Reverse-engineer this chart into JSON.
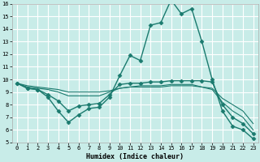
{
  "xlabel": "Humidex (Indice chaleur)",
  "background_color": "#c8ece8",
  "grid_color": "#ffffff",
  "line_color": "#1a7a6e",
  "x_range": [
    0,
    23
  ],
  "y_min": 5,
  "y_max": 16,
  "lines": [
    {
      "x": [
        0,
        1,
        2,
        3,
        4,
        5,
        6,
        7,
        8,
        9,
        10,
        11,
        12,
        13,
        14,
        15,
        16,
        17,
        18,
        19,
        20,
        21,
        22,
        23
      ],
      "y": [
        9.7,
        9.3,
        9.2,
        8.6,
        7.5,
        6.6,
        7.2,
        7.7,
        7.8,
        8.6,
        10.3,
        11.9,
        11.5,
        14.3,
        14.5,
        16.3,
        15.2,
        15.6,
        13.0,
        10.0,
        7.5,
        6.3,
        6.0,
        5.3
      ],
      "marker": "D",
      "markersize": 2.5,
      "linewidth": 1.0
    },
    {
      "x": [
        0,
        1,
        2,
        3,
        4,
        5,
        6,
        7,
        8,
        9,
        10,
        11,
        12,
        13,
        14,
        15,
        16,
        17,
        18,
        19,
        20,
        21,
        22,
        23
      ],
      "y": [
        9.7,
        9.3,
        9.2,
        8.8,
        8.3,
        7.5,
        7.9,
        8.0,
        8.1,
        8.8,
        9.6,
        9.7,
        9.7,
        9.8,
        9.8,
        9.9,
        9.9,
        9.9,
        9.9,
        9.8,
        8.0,
        7.0,
        6.5,
        5.7
      ],
      "marker": "D",
      "markersize": 2.5,
      "linewidth": 1.0
    },
    {
      "x": [
        0,
        1,
        2,
        3,
        4,
        5,
        6,
        7,
        8,
        9,
        10,
        11,
        12,
        13,
        14,
        15,
        16,
        17,
        18,
        19,
        20,
        21,
        22,
        23
      ],
      "y": [
        9.7,
        9.4,
        9.3,
        9.2,
        9.0,
        8.7,
        8.7,
        8.7,
        8.7,
        9.0,
        9.3,
        9.4,
        9.5,
        9.5,
        9.5,
        9.6,
        9.6,
        9.6,
        9.4,
        9.2,
        8.2,
        7.5,
        7.0,
        6.0
      ],
      "marker": null,
      "markersize": 0,
      "linewidth": 0.8
    },
    {
      "x": [
        0,
        1,
        2,
        3,
        4,
        5,
        6,
        7,
        8,
        9,
        10,
        11,
        12,
        13,
        14,
        15,
        16,
        17,
        18,
        19,
        20,
        21,
        22,
        23
      ],
      "y": [
        9.7,
        9.5,
        9.4,
        9.3,
        9.2,
        9.0,
        9.0,
        9.0,
        9.0,
        9.1,
        9.3,
        9.4,
        9.4,
        9.4,
        9.4,
        9.5,
        9.5,
        9.5,
        9.4,
        9.3,
        8.5,
        8.0,
        7.5,
        6.5
      ],
      "marker": null,
      "markersize": 0,
      "linewidth": 0.8
    }
  ]
}
